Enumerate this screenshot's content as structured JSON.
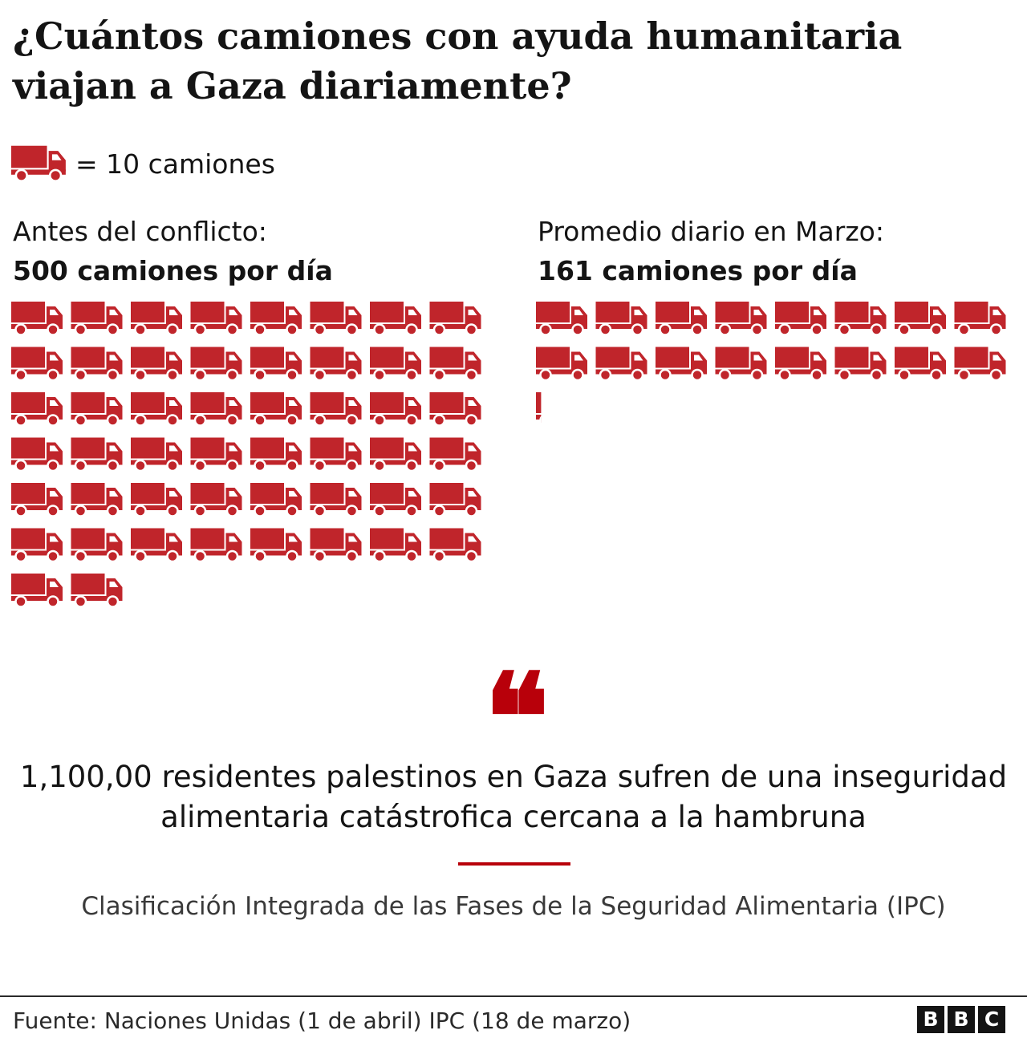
{
  "chart_data": {
    "type": "pictogram",
    "title": "¿Cuántos camiones con ayuda humanitaria viajan a Gaza diariamente?",
    "legend": {
      "icon": "truck-icon",
      "label": "= 10 camiones",
      "units_per_icon": 10
    },
    "icon_color": "#c0252b",
    "series": [
      {
        "label": "Antes del conflicto:",
        "value_label": "500 camiones por día",
        "value": 500
      },
      {
        "label": "Promedio diario en Marzo:",
        "value_label": "161 camiones por día",
        "value": 161
      }
    ]
  },
  "quote": {
    "mark": "❝",
    "text": "1,100,00 residentes palestinos en Gaza sufren de una inseguridad alimentaria catástrofica cercana a la hambruna",
    "source": "Clasificación Integrada de las Fases de la Seguridad Alimentaria (IPC)"
  },
  "footer": {
    "source": "Fuente: Naciones Unidas (1 de abril) IPC (18 de marzo)",
    "logo": [
      "B",
      "B",
      "C"
    ]
  }
}
